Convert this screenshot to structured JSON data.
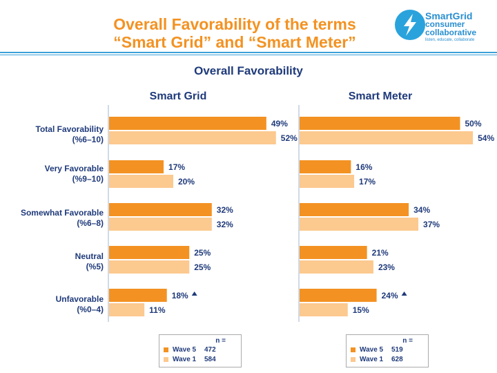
{
  "title_line1": "Overall Favorability of the terms",
  "title_line2": "“Smart Grid” and “Smart Meter”",
  "logo": {
    "line1": "SmartGrid",
    "line2": "consumer",
    "line3": "collaborative",
    "tagline": "listen, educate, collaborate"
  },
  "colors": {
    "wave5": "#f39222",
    "wave1": "#fcc98f",
    "accent_line": "#3aa0d8",
    "text": "#1f3a7a"
  },
  "chart_data": {
    "type": "bar",
    "orientation": "horizontal",
    "title": "Overall Favorability",
    "categories": [
      {
        "line1": "Total Favorability",
        "line2": "(%6–10)"
      },
      {
        "line1": "Very Favorable",
        "line2": "(%9–10)"
      },
      {
        "line1": "Somewhat Favorable",
        "line2": "(%6–8)"
      },
      {
        "line1": "Neutral",
        "line2": "(%5)"
      },
      {
        "line1": "Unfavorable",
        "line2": "(%0–4)"
      }
    ],
    "panels": [
      {
        "name": "Smart Grid",
        "series": [
          {
            "name": "Wave 5",
            "n": "472",
            "values": [
              49,
              17,
              32,
              25,
              18
            ]
          },
          {
            "name": "Wave 1",
            "n": "584",
            "values": [
              52,
              20,
              32,
              25,
              11
            ]
          }
        ],
        "labels": {
          "Wave 5": [
            "49%",
            "17%",
            "32%",
            "25%",
            "18%"
          ],
          "Wave 1": [
            "52%",
            "20%",
            "32%",
            "25%",
            "11%"
          ]
        },
        "significant_increase": [
          false,
          false,
          false,
          false,
          true
        ]
      },
      {
        "name": "Smart Meter",
        "series": [
          {
            "name": "Wave 5",
            "n": "519",
            "values": [
              50,
              16,
              34,
              21,
              24
            ]
          },
          {
            "name": "Wave 1",
            "n": "628",
            "values": [
              54,
              17,
              37,
              23,
              15
            ]
          }
        ],
        "labels": {
          "Wave 5": [
            "50%",
            "16%",
            "34%",
            "21%",
            "24%"
          ],
          "Wave 1": [
            "54%",
            "17%",
            "37%",
            "23%",
            "15%"
          ]
        },
        "significant_increase": [
          false,
          false,
          false,
          false,
          true
        ]
      }
    ],
    "legend_header": "n ="
  }
}
